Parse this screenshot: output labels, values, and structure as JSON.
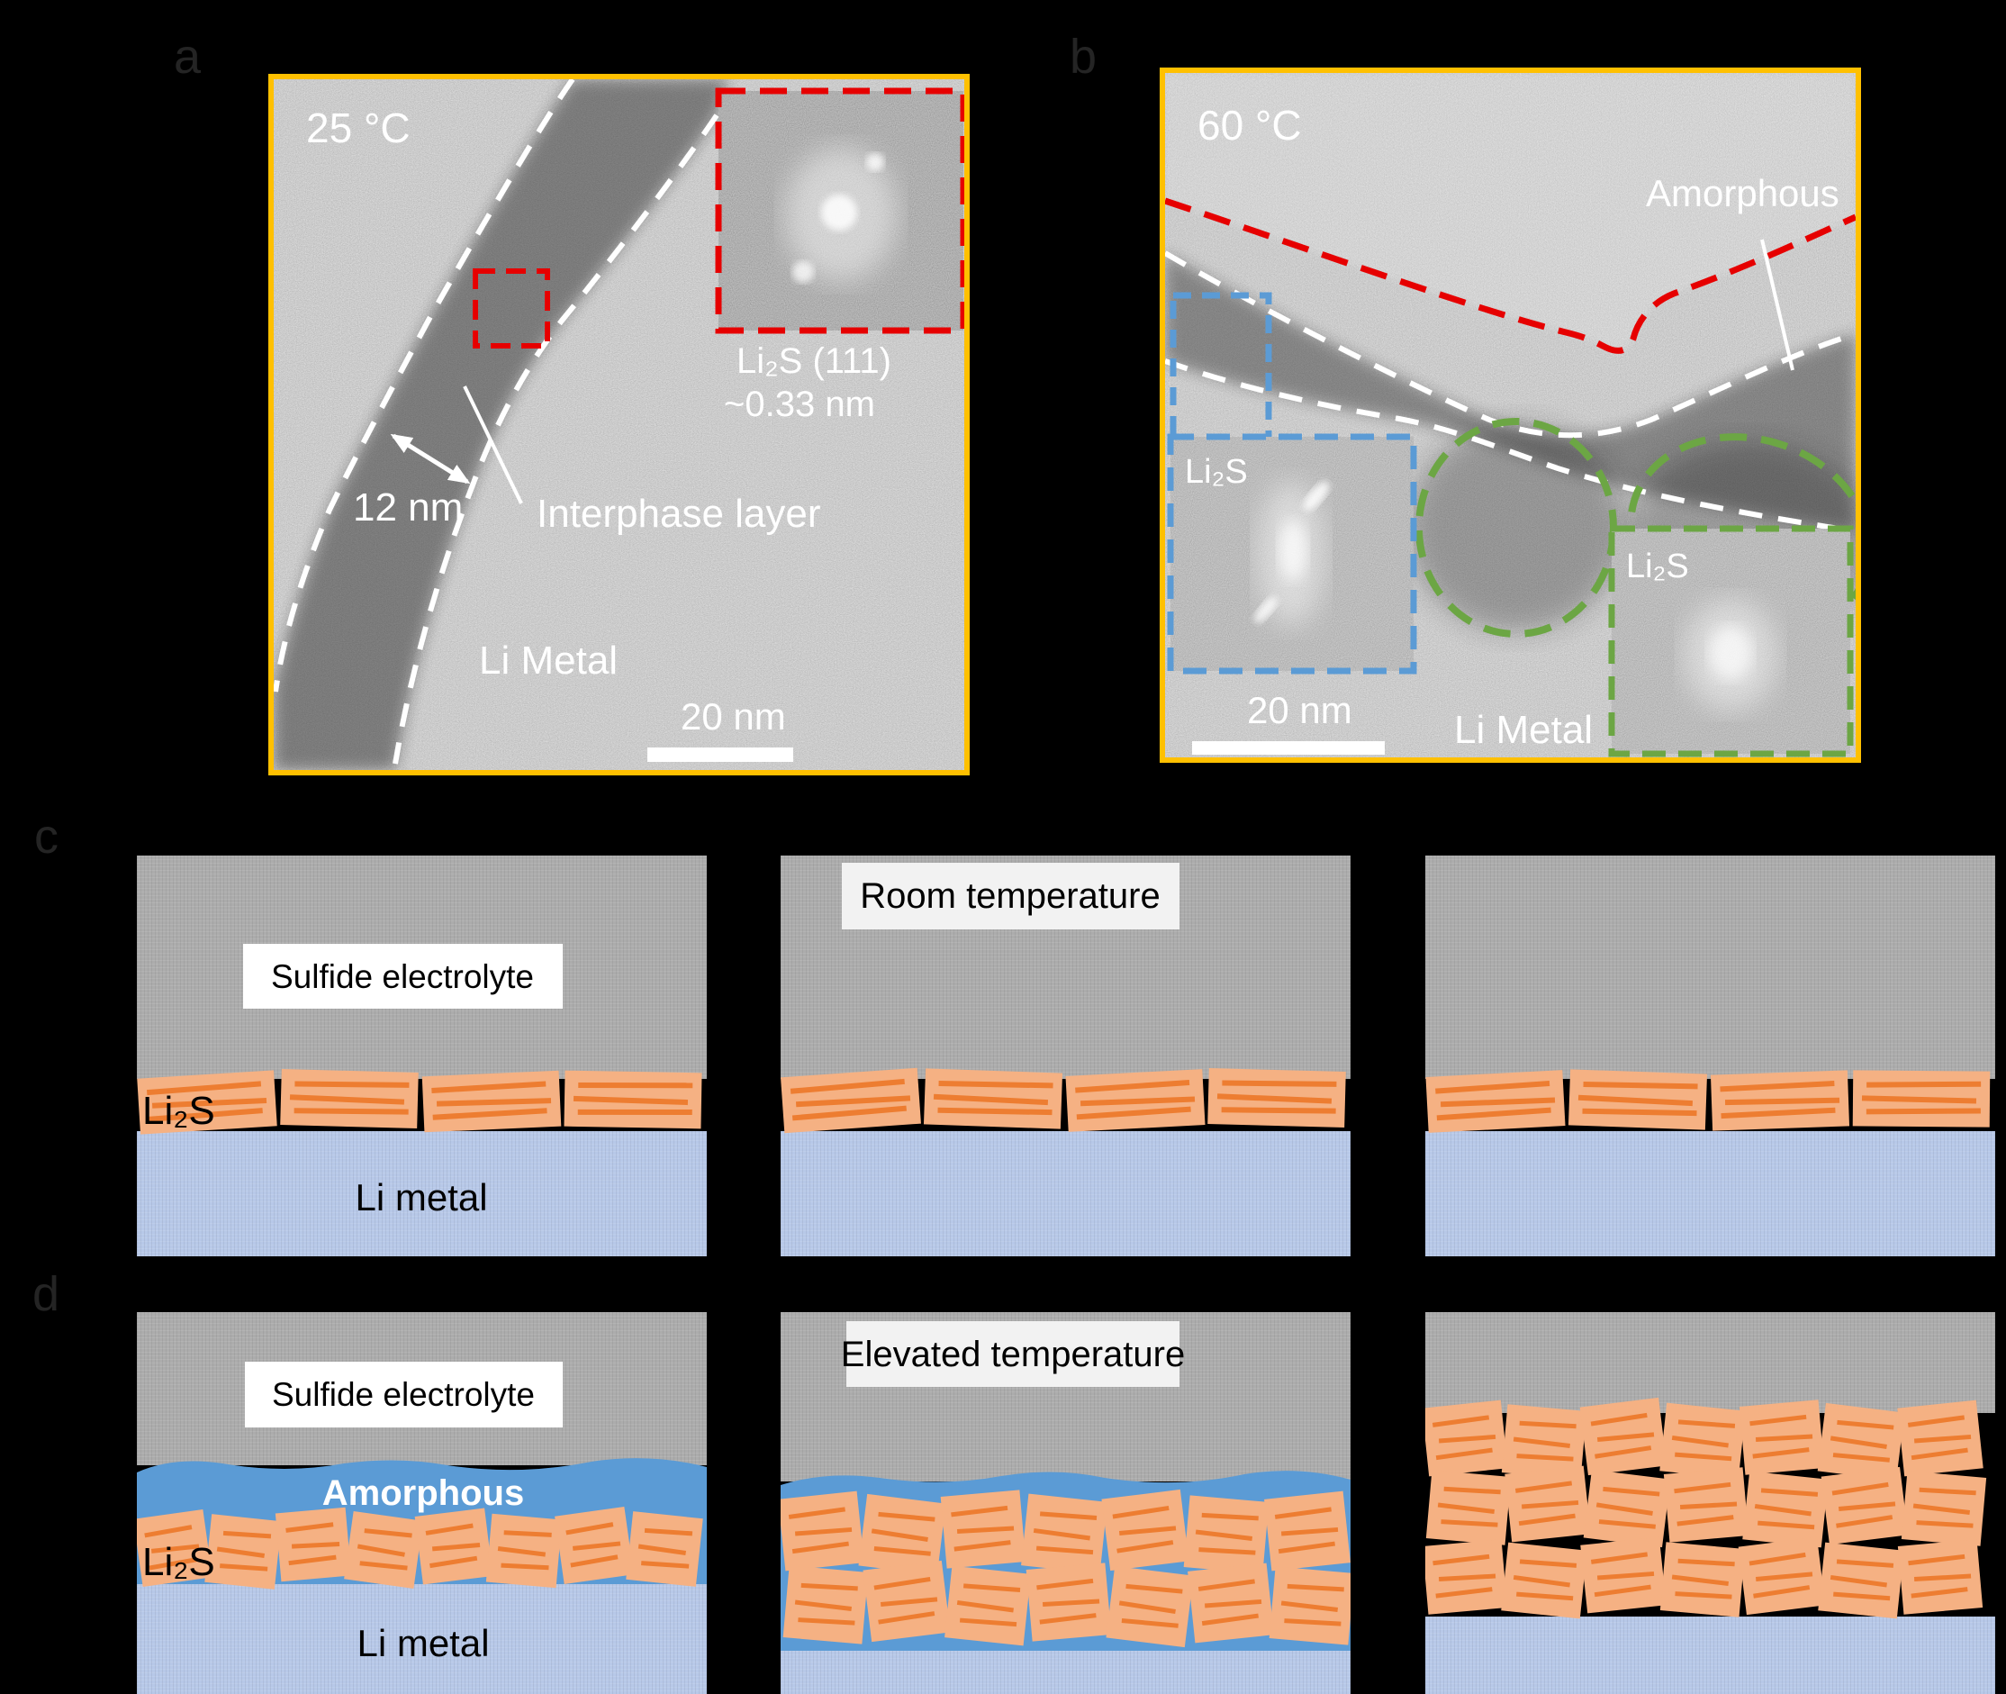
{
  "colors": {
    "gold": "#FFC000",
    "red": "#E60000",
    "dashWhite": "#FFFFFF",
    "blue": "#5B9BD5",
    "green": "#6CA644",
    "blockFill": "#F5B183",
    "blockLine": "#ED7D31",
    "liMetal": "#B7C8E8",
    "amorphous": "#5B9BD5",
    "electrolyte": "#ACACAC",
    "labelBox": "#FFFFFF",
    "titleBox": "#F2F2F2",
    "panelLabel": "#242424"
  },
  "panel_a": {
    "label": "a",
    "temp": "25 °C",
    "fft_caption_1": "Li₂S (111)",
    "fft_caption_2": "~0.33 nm",
    "width_label": "12 nm",
    "interphase_label": "Interphase  layer",
    "limetal_label": "Li Metal",
    "scalebar_label": "20 nm"
  },
  "panel_b": {
    "label": "b",
    "temp": "60 °C",
    "amorphous_label": "Amorphous",
    "fft_blue_label": "Li₂S",
    "fft_green_label": "Li₂S",
    "limetal_label": "Li Metal",
    "scalebar_label": "20 nm"
  },
  "panel_c": {
    "label": "c",
    "title": "Room temperature",
    "electrolyte_label": "Sulfide electrolyte",
    "li2s_label": "Li₂S",
    "limetal_label": "Li metal"
  },
  "panel_d": {
    "label": "d",
    "title": "Elevated temperature",
    "electrolyte_label": "Sulfide electrolyte",
    "amorphous_label": "Amorphous",
    "li2s_label": "Li₂S",
    "limetal_label": "Li metal"
  }
}
